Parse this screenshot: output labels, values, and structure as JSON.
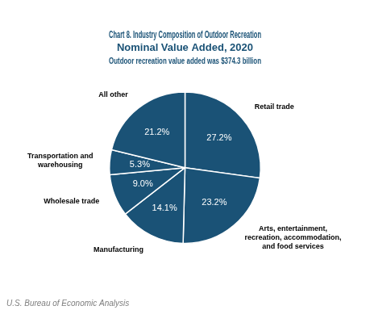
{
  "chart_data": {
    "type": "pie",
    "title": [
      "Chart 8. Industry Composition of Outdoor Recreation",
      "Nominal Value Added, 2020"
    ],
    "subtitle": "Outdoor recreation value added was $374.3 billion",
    "annotations": [
      "U.S. Bureau of Economic Analysis"
    ],
    "categories": [
      "Retail trade",
      "Arts, entertainment,\nrecreation, accommodation,\nand food services",
      "Manufacturing",
      "Wholesale trade",
      "Transportation and\nwarehousing",
      "All other"
    ],
    "values": [
      27.2,
      23.2,
      14.1,
      9.0,
      5.3,
      21.2
    ],
    "value_labels": [
      "27.2%",
      "23.2%",
      "14.1%",
      "9.0%",
      "5.3%",
      "21.2%"
    ],
    "color": "#1a5276",
    "data_labels": true
  }
}
